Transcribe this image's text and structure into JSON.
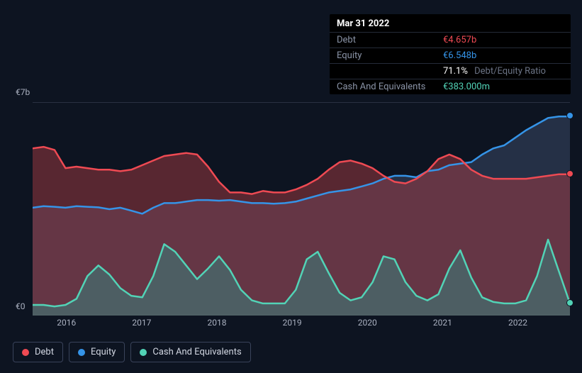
{
  "background_color": "#0d1421",
  "grid_color": "#2a3142",
  "text_color": "#aab1c0",
  "tooltip": {
    "background": "#000000",
    "title": "Mar 31 2022",
    "rows": [
      {
        "label": "Debt",
        "value": "€4.657b",
        "color": "#ef4a53"
      },
      {
        "label": "Equity",
        "value": "€6.548b",
        "color": "#3594e8"
      },
      {
        "label": "",
        "value": "71.1%",
        "suffix": "Debt/Equity Ratio",
        "color": "#ffffff"
      },
      {
        "label": "Cash And Equivalents",
        "value": "€383.000m",
        "color": "#52d3b6"
      }
    ]
  },
  "chart": {
    "type": "area",
    "y_axis": {
      "top_label": "€7b",
      "bottom_label": "€0",
      "ymin": 0,
      "ymax": 7
    },
    "x_ticks": [
      "2016",
      "2017",
      "2018",
      "2019",
      "2020",
      "2021",
      "2022"
    ],
    "x_tick_positions": [
      0.063,
      0.203,
      0.343,
      0.483,
      0.623,
      0.763,
      0.903
    ],
    "series": [
      {
        "name": "Equity",
        "color": "#3594e8",
        "fill": "#3a4766",
        "fill_opacity": 0.55,
        "line_width": 2.5,
        "values": [
          3.55,
          3.6,
          3.58,
          3.55,
          3.6,
          3.58,
          3.56,
          3.5,
          3.55,
          3.45,
          3.35,
          3.55,
          3.7,
          3.7,
          3.75,
          3.8,
          3.8,
          3.78,
          3.8,
          3.75,
          3.7,
          3.7,
          3.68,
          3.7,
          3.75,
          3.85,
          3.95,
          4.05,
          4.1,
          4.15,
          4.25,
          4.35,
          4.5,
          4.6,
          4.6,
          4.55,
          4.75,
          4.8,
          4.95,
          5.0,
          5.05,
          5.3,
          5.5,
          5.6,
          5.85,
          6.1,
          6.3,
          6.5,
          6.55,
          6.55
        ]
      },
      {
        "name": "Debt",
        "color": "#ef4a53",
        "fill": "#b43d44",
        "fill_opacity": 0.45,
        "line_width": 2.5,
        "values": [
          5.5,
          5.55,
          5.45,
          4.85,
          4.9,
          4.85,
          4.8,
          4.8,
          4.75,
          4.8,
          4.95,
          5.1,
          5.25,
          5.3,
          5.35,
          5.3,
          4.9,
          4.4,
          4.05,
          4.05,
          4.0,
          4.1,
          4.05,
          4.05,
          4.15,
          4.3,
          4.5,
          4.8,
          5.05,
          5.1,
          5.0,
          4.85,
          4.6,
          4.4,
          4.35,
          4.5,
          4.75,
          5.15,
          5.3,
          5.15,
          4.8,
          4.6,
          4.5,
          4.5,
          4.5,
          4.5,
          4.55,
          4.6,
          4.65,
          4.65
        ]
      },
      {
        "name": "Cash And Equivalents",
        "color": "#52d3b6",
        "fill": "#3d7a78",
        "fill_opacity": 0.6,
        "line_width": 2.5,
        "values": [
          0.35,
          0.35,
          0.3,
          0.35,
          0.55,
          1.3,
          1.65,
          1.35,
          0.9,
          0.65,
          0.6,
          1.3,
          2.35,
          2.1,
          1.65,
          1.2,
          1.55,
          1.95,
          1.5,
          0.85,
          0.5,
          0.4,
          0.4,
          0.4,
          0.85,
          1.85,
          2.1,
          1.4,
          0.75,
          0.5,
          0.6,
          1.1,
          1.95,
          1.85,
          1.1,
          0.65,
          0.5,
          0.7,
          1.55,
          2.15,
          1.25,
          0.6,
          0.45,
          0.4,
          0.4,
          0.5,
          1.3,
          2.5,
          1.45,
          0.4
        ]
      }
    ]
  },
  "legend": {
    "items": [
      {
        "label": "Debt",
        "color": "#ef4a53"
      },
      {
        "label": "Equity",
        "color": "#3594e8"
      },
      {
        "label": "Cash And Equivalents",
        "color": "#52d3b6"
      }
    ]
  }
}
